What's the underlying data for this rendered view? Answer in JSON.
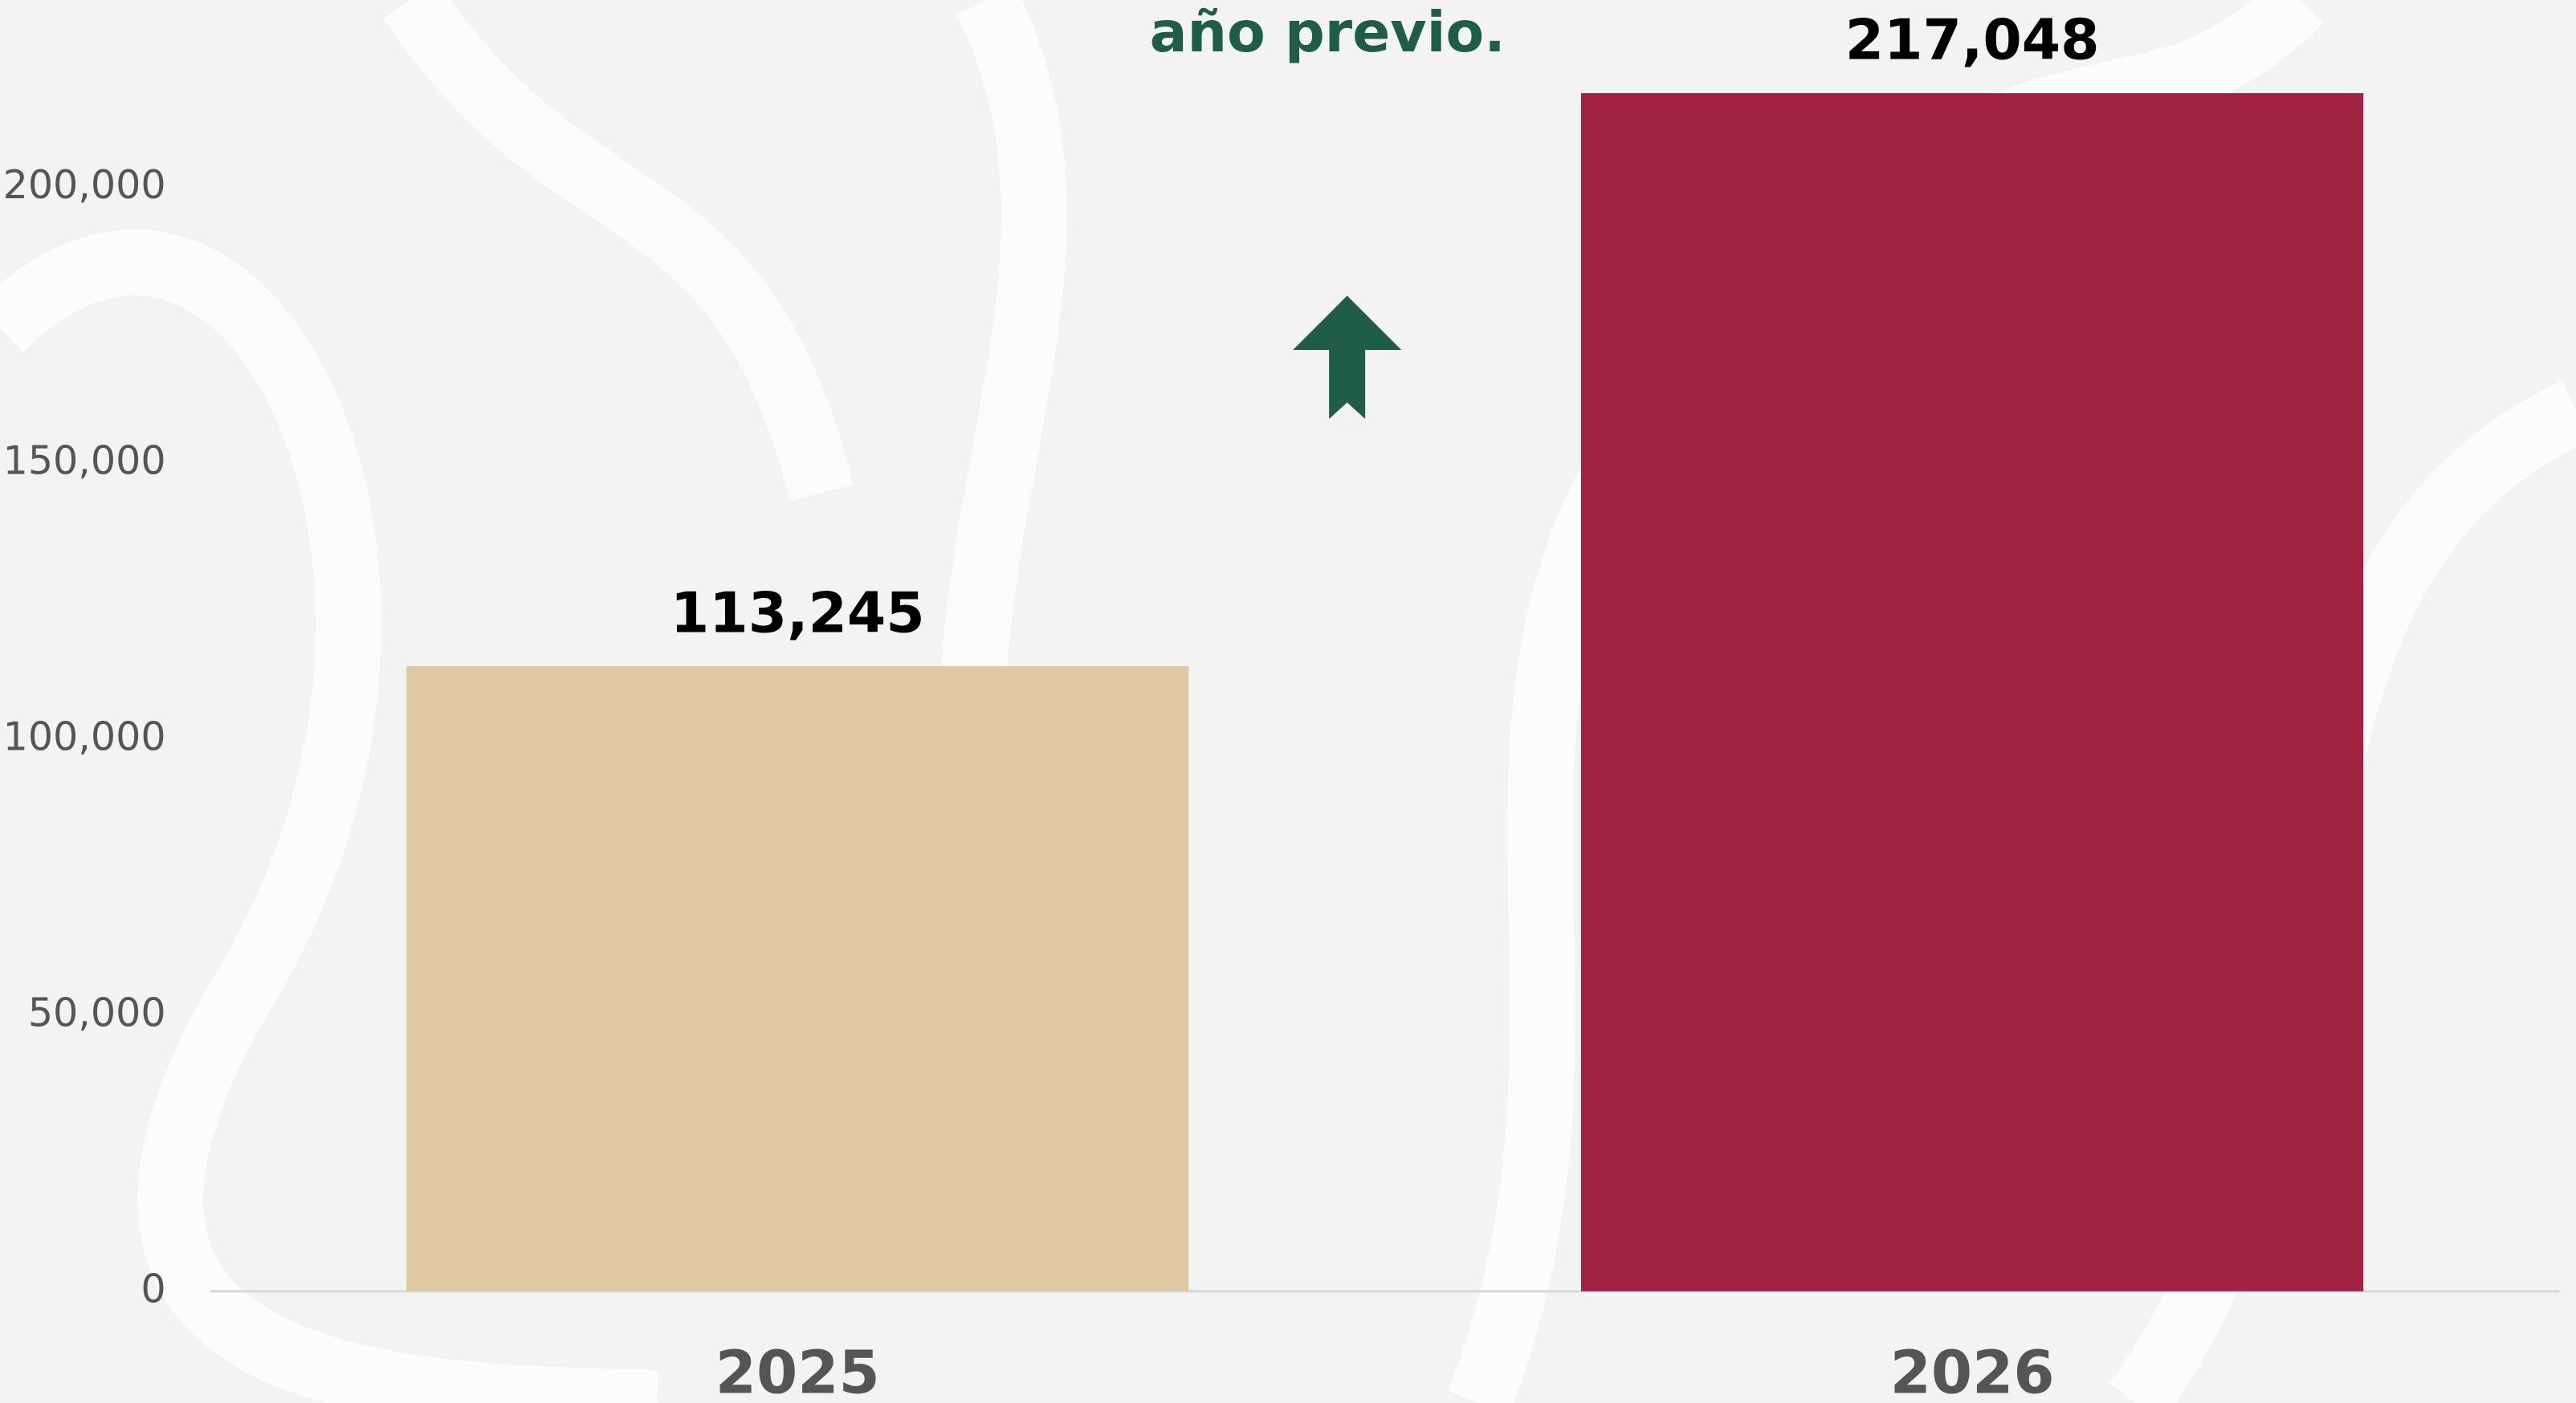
{
  "chart_data": {
    "type": "bar",
    "annotation": "año previo.",
    "categories": [
      "2025",
      "2026"
    ],
    "values": [
      113245,
      217048
    ],
    "value_labels": [
      "113,245",
      "217,048"
    ],
    "colors": [
      "#dfc9a3",
      "#a02142"
    ],
    "ylim": [
      0,
      230000
    ],
    "yticks": [
      0,
      {
        "value": 50000,
        "label": "50,000"
      },
      {
        "value": 100000,
        "label": "100,000"
      },
      {
        "value": 150000,
        "label": "150,000"
      },
      {
        "value": 200000,
        "label": "200,000"
      }
    ],
    "grid": false
  }
}
